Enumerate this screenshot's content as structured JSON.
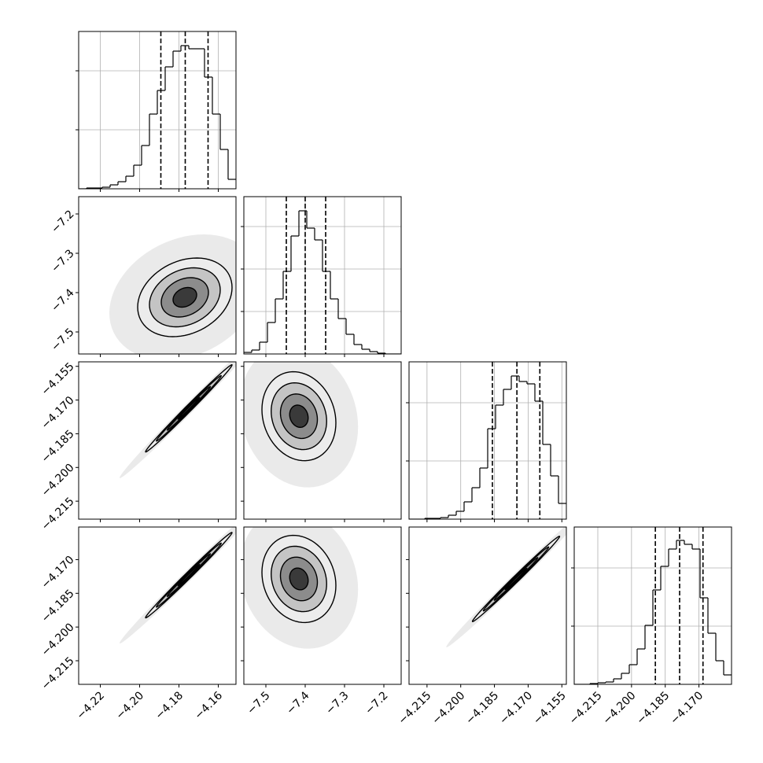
{
  "chart_data": {
    "type": "corner",
    "levels": [
      0.5,
      1,
      1.5,
      2
    ],
    "params": [
      {
        "lim": [
          -4.231,
          -4.151
        ],
        "ticks": [
          {
            "value": -4.22,
            "label": "−4.22"
          },
          {
            "value": -4.2,
            "label": "−4.20"
          },
          {
            "value": -4.18,
            "label": "−4.18"
          },
          {
            "value": -4.16,
            "label": "−4.16"
          }
        ],
        "quantiles": [
          -4.1892,
          -4.1768,
          -4.1652
        ],
        "hist": {
          "bins": [
            -4.231,
            -4.227,
            -4.223,
            -4.219,
            -4.215,
            -4.211,
            -4.207,
            -4.203,
            -4.199,
            -4.195,
            -4.191,
            -4.187,
            -4.183,
            -4.179,
            -4.175,
            -4.171,
            -4.167,
            -4.163,
            -4.159,
            -4.155,
            -4.151
          ],
          "counts": [
            0,
            1,
            1,
            2,
            5,
            9,
            16,
            30,
            55,
            95,
            125,
            155,
            175,
            182,
            178,
            178,
            142,
            95,
            50,
            12
          ],
          "ylim": [
            0,
            200
          ],
          "yticks": [
            75,
            150
          ]
        }
      },
      {
        "lim": [
          -7.556,
          -7.156
        ],
        "ticks": [
          {
            "value": -7.5,
            "label": "−7.5"
          },
          {
            "value": -7.4,
            "label": "−7.4"
          },
          {
            "value": -7.3,
            "label": "−7.3"
          },
          {
            "value": -7.2,
            "label": "−7.2"
          }
        ],
        "quantiles": [
          -7.448,
          -7.4,
          -7.348
        ],
        "hist": {
          "bins": [
            -7.556,
            -7.536,
            -7.516,
            -7.496,
            -7.476,
            -7.456,
            -7.436,
            -7.416,
            -7.396,
            -7.376,
            -7.356,
            -7.336,
            -7.316,
            -7.296,
            -7.276,
            -7.256,
            -7.236,
            -7.216,
            -7.196,
            -7.176,
            -7.156
          ],
          "counts": [
            2,
            5,
            15,
            40,
            70,
            105,
            150,
            182,
            160,
            145,
            105,
            70,
            45,
            25,
            12,
            6,
            3,
            1,
            0,
            0
          ],
          "ylim": [
            0,
            200
          ],
          "yticks": [
            54,
            108,
            162
          ]
        }
      },
      {
        "lim": [
          -4.223,
          -4.153
        ],
        "ticks": [
          {
            "value": -4.215,
            "label": "−4.215"
          },
          {
            "value": -4.2,
            "label": "−4.200"
          },
          {
            "value": -4.185,
            "label": "−4.185"
          },
          {
            "value": -4.17,
            "label": "−4.170"
          },
          {
            "value": -4.155,
            "label": "−4.155"
          }
        ],
        "quantiles": [
          -4.1859,
          -4.175,
          -4.1648
        ],
        "hist": {
          "bins": [
            -4.223,
            -4.2195,
            -4.216,
            -4.2125,
            -4.209,
            -4.2055,
            -4.202,
            -4.1985,
            -4.195,
            -4.1915,
            -4.188,
            -4.1845,
            -4.181,
            -4.1775,
            -4.174,
            -4.1705,
            -4.167,
            -4.1635,
            -4.16,
            -4.1565,
            -4.153
          ],
          "counts": [
            0,
            0,
            1,
            1,
            2,
            5,
            10,
            22,
            40,
            65,
            115,
            145,
            165,
            182,
            175,
            172,
            150,
            95,
            55,
            20
          ],
          "ylim": [
            0,
            200
          ],
          "yticks": [
            74,
            148
          ]
        }
      },
      {
        "lim": [
          -4.2255,
          -4.1555
        ],
        "ticks": [
          {
            "value": -4.215,
            "label": "−4.215"
          },
          {
            "value": -4.2,
            "label": "−4.200"
          },
          {
            "value": -4.185,
            "label": "−4.185"
          },
          {
            "value": -4.17,
            "label": "−4.170"
          }
        ],
        "quantiles": [
          -4.1894,
          -4.1786,
          -4.1682
        ],
        "hist": {
          "bins": [
            -4.2255,
            -4.222,
            -4.2185,
            -4.215,
            -4.2115,
            -4.208,
            -4.2045,
            -4.201,
            -4.1975,
            -4.194,
            -4.1905,
            -4.187,
            -4.1835,
            -4.18,
            -4.1765,
            -4.173,
            -4.1695,
            -4.166,
            -4.1625,
            -4.159,
            -4.1555
          ],
          "counts": [
            0,
            0,
            1,
            2,
            3,
            7,
            14,
            25,
            45,
            75,
            120,
            150,
            172,
            183,
            178,
            172,
            110,
            65,
            30,
            12
          ],
          "ylim": [
            0,
            200
          ],
          "yticks": [
            74,
            148
          ]
        }
      }
    ],
    "pairs": [
      {
        "mean": [
          -4.177,
          -7.412
        ],
        "sd": [
          0.012,
          0.05
        ],
        "rho": 0.25
      },
      {
        "mean": [
          -4.175,
          -4.1737
        ],
        "sd": [
          0.011,
          0.0097
        ],
        "rho": 0.995
      },
      {
        "mean": [
          -7.416,
          -4.1772
        ],
        "sd": [
          0.047,
          0.0099
        ],
        "rho": -0.15
      },
      {
        "mean": [
          -4.175,
          -4.1769
        ],
        "sd": [
          0.011,
          0.0095
        ],
        "rho": 0.995
      },
      {
        "mean": [
          -7.416,
          -4.1786
        ],
        "sd": [
          0.047,
          0.0097
        ],
        "rho": -0.15
      },
      {
        "mean": [
          -4.1754,
          -4.1786
        ],
        "sd": [
          0.0097,
          0.0095
        ],
        "rho": 0.995
      }
    ]
  }
}
